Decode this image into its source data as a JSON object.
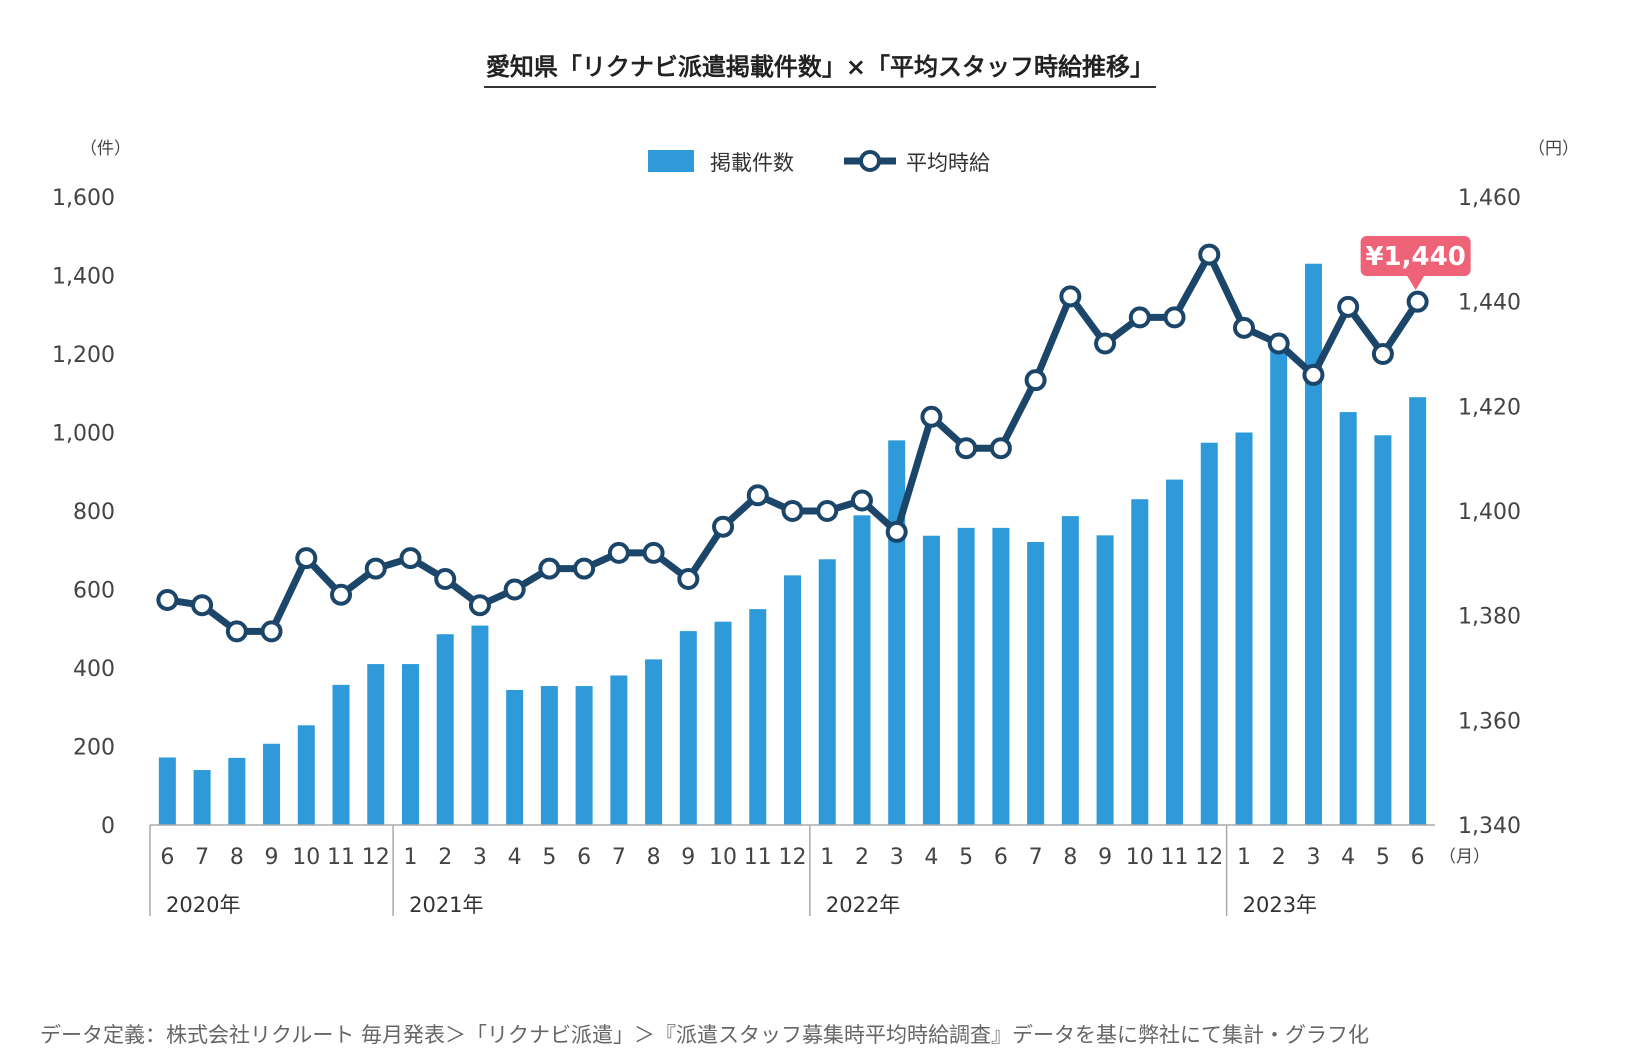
{
  "title": "愛知県「リクナビ派遣掲載件数」×「平均スタッフ時給推移」",
  "colors": {
    "bar": "#2e9ad9",
    "line": "#1b4669",
    "axis": "#aaaaaa",
    "badge": "#ee6377"
  },
  "chart_data": {
    "type": "bar",
    "title": "愛知県「リクナビ派遣掲載件数」×「平均スタッフ時給推移」",
    "categories": [
      "6",
      "7",
      "8",
      "9",
      "10",
      "11",
      "12",
      "1",
      "2",
      "3",
      "4",
      "5",
      "6",
      "7",
      "8",
      "9",
      "10",
      "11",
      "12",
      "1",
      "2",
      "3",
      "4",
      "5",
      "6",
      "7",
      "8",
      "9",
      "10",
      "11",
      "12",
      "1",
      "2",
      "3",
      "4",
      "5",
      "6"
    ],
    "x_unit": "（月）",
    "years": [
      {
        "label": "2020年",
        "start_index": 0
      },
      {
        "label": "2021年",
        "start_index": 7
      },
      {
        "label": "2022年",
        "start_index": 19
      },
      {
        "label": "2023年",
        "start_index": 31
      }
    ],
    "left_axis": {
      "unit": "（件）",
      "ylim": [
        0,
        1600
      ],
      "ticks": [
        "0",
        "200",
        "400",
        "600",
        "800",
        "1,000",
        "1,200",
        "1,400",
        "1,600"
      ]
    },
    "right_axis": {
      "unit": "（円）",
      "ylim": [
        1340,
        1460
      ],
      "ticks": [
        "1,340",
        "1,360",
        "1,380",
        "1,400",
        "1,420",
        "1,440",
        "1,460"
      ]
    },
    "legend": {
      "position": "top-center"
    },
    "series": [
      {
        "name": "掲載件数",
        "type": "bar",
        "axis": "left",
        "values": [
          172,
          140,
          171,
          207,
          254,
          357,
          410,
          410,
          486,
          508,
          344,
          354,
          354,
          381,
          422,
          494,
          518,
          550,
          636,
          677,
          789,
          980,
          737,
          757,
          757,
          721,
          787,
          738,
          830,
          880,
          974,
          1000,
          1230,
          1430,
          1052,
          993,
          1090
        ]
      },
      {
        "name": "平均時給",
        "type": "line",
        "axis": "right",
        "values": [
          1383,
          1382,
          1377,
          1377,
          1391,
          1384,
          1389,
          1391,
          1387,
          1382,
          1385,
          1389,
          1389,
          1392,
          1392,
          1387,
          1397,
          1403,
          1400,
          1400,
          1402,
          1396,
          1418,
          1412,
          1412,
          1425,
          1441,
          1432,
          1437,
          1437,
          1449,
          1435,
          1432,
          1426,
          1439,
          1430,
          1440
        ]
      }
    ],
    "annotation": {
      "text": "¥1,440",
      "index": 36
    }
  },
  "footnote": "データ定義：株式会社リクルート 毎月発表＞「リクナビ派遣」＞『派遣スタッフ募集時平均時給調査』データを基に弊社にて集計・グラフ化"
}
